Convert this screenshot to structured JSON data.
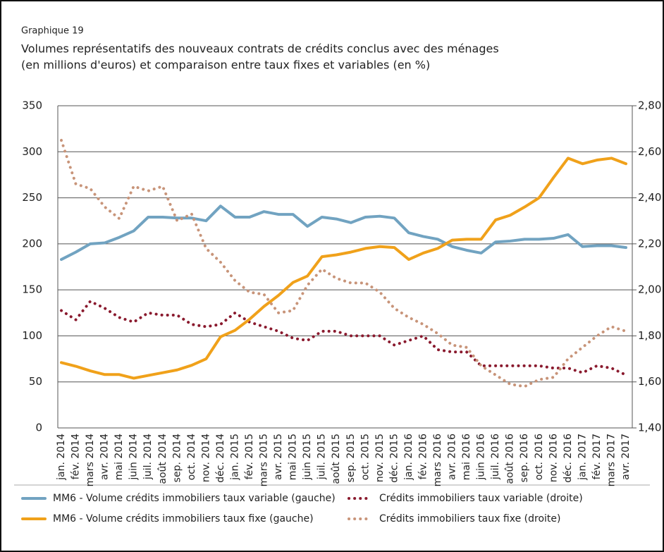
{
  "chart_data": {
    "type": "line",
    "label": "Graphique 19",
    "title": [
      "Volumes représentatifs des nouveaux contrats de crédits conclus avec des ménages",
      "(en millions d'euros) et comparaison entre taux fixes et variables (en %)"
    ],
    "categories": [
      "jan. 2014",
      "fév. 2014",
      "mars 2014",
      "avr. 2014",
      "mai 2014",
      "juin 2014",
      "juil. 2014",
      "août 2014",
      "sep. 2014",
      "oct. 2014",
      "nov. 2014",
      "déc. 2014",
      "jan. 2015",
      "fév. 2015",
      "mars 2015",
      "avr. 2015",
      "mai 2015",
      "juin 2015",
      "juil. 2015",
      "août 2015",
      "sep. 2015",
      "oct. 2015",
      "nov. 2015",
      "déc. 2015",
      "jan. 2016",
      "fév. 2016",
      "mars 2016",
      "avr. 2016",
      "mai 2016",
      "juin 2016",
      "juil. 2016",
      "août 2016",
      "sep. 2016",
      "oct. 2016",
      "nov. 2016",
      "déc. 2016",
      "jan. 2017",
      "fév. 2017",
      "mars 2017",
      "avr. 2017"
    ],
    "ylim": [
      0,
      350
    ],
    "yticks": [
      0,
      50,
      100,
      150,
      200,
      250,
      300,
      350
    ],
    "y2lim": [
      1.4,
      2.8
    ],
    "y2ticks": [
      {
        "value": 1.4,
        "label": "1,40"
      },
      {
        "value": 1.6,
        "label": "1,60"
      },
      {
        "value": 1.8,
        "label": "1,80"
      },
      {
        "value": 2.0,
        "label": "2,00"
      },
      {
        "value": 2.2,
        "label": "2,20"
      },
      {
        "value": 2.4,
        "label": "2,40"
      },
      {
        "value": 2.6,
        "label": "2,60"
      },
      {
        "value": 2.8,
        "label": "2,80"
      }
    ],
    "grid": true,
    "series": [
      {
        "name": "MM6 - Volume crédits immobiliers taux variable (gauche)",
        "color": "#71a3c1",
        "style": "solid",
        "values": [
          183,
          191,
          200,
          201,
          207,
          214,
          229,
          229,
          228,
          228,
          225,
          241,
          229,
          229,
          235,
          232,
          232,
          219,
          229,
          227,
          223,
          229,
          230,
          228,
          212,
          208,
          205,
          197,
          193,
          190,
          202,
          203,
          205,
          205,
          206,
          210,
          197,
          198,
          198,
          196
        ]
      },
      {
        "name": "Crédits immobiliers taux variable (droite)",
        "color": "#8a1a2e",
        "style": "dotted",
        "axis": "y2",
        "values": [
          1.91,
          1.87,
          1.95,
          1.92,
          1.88,
          1.86,
          1.9,
          1.89,
          1.89,
          1.85,
          1.84,
          1.85,
          1.9,
          1.86,
          1.84,
          1.82,
          1.79,
          1.78,
          1.82,
          1.82,
          1.8,
          1.8,
          1.8,
          1.76,
          1.78,
          1.8,
          1.74,
          1.73,
          1.73,
          1.67,
          1.67,
          1.67,
          1.67,
          1.67,
          1.66,
          1.66,
          1.64,
          1.67,
          1.66,
          1.63
        ]
      },
      {
        "name": "MM6 - Volume crédits immobiliers taux fixe (gauche)",
        "color": "#f0a11a",
        "style": "solid",
        "values": [
          71,
          67,
          62,
          58,
          58,
          54,
          57,
          60,
          63,
          68,
          75,
          99,
          106,
          118,
          132,
          144,
          158,
          165,
          186,
          188,
          191,
          195,
          197,
          196,
          183,
          190,
          195,
          204,
          205,
          205,
          226,
          231,
          240,
          250,
          272,
          293,
          287,
          291,
          293,
          287
        ]
      },
      {
        "name": "Crédits immobiliers taux fixe (droite)",
        "color": "#c89479",
        "style": "dotted",
        "axis": "y2",
        "values": [
          2.65,
          2.46,
          2.44,
          2.36,
          2.31,
          2.45,
          2.43,
          2.45,
          2.3,
          2.33,
          2.18,
          2.12,
          2.04,
          1.99,
          1.98,
          1.9,
          1.91,
          2.02,
          2.09,
          2.05,
          2.03,
          2.03,
          1.99,
          1.92,
          1.88,
          1.85,
          1.81,
          1.76,
          1.75,
          1.67,
          1.63,
          1.59,
          1.58,
          1.61,
          1.62,
          1.7,
          1.75,
          1.8,
          1.84,
          1.82
        ]
      }
    ]
  }
}
